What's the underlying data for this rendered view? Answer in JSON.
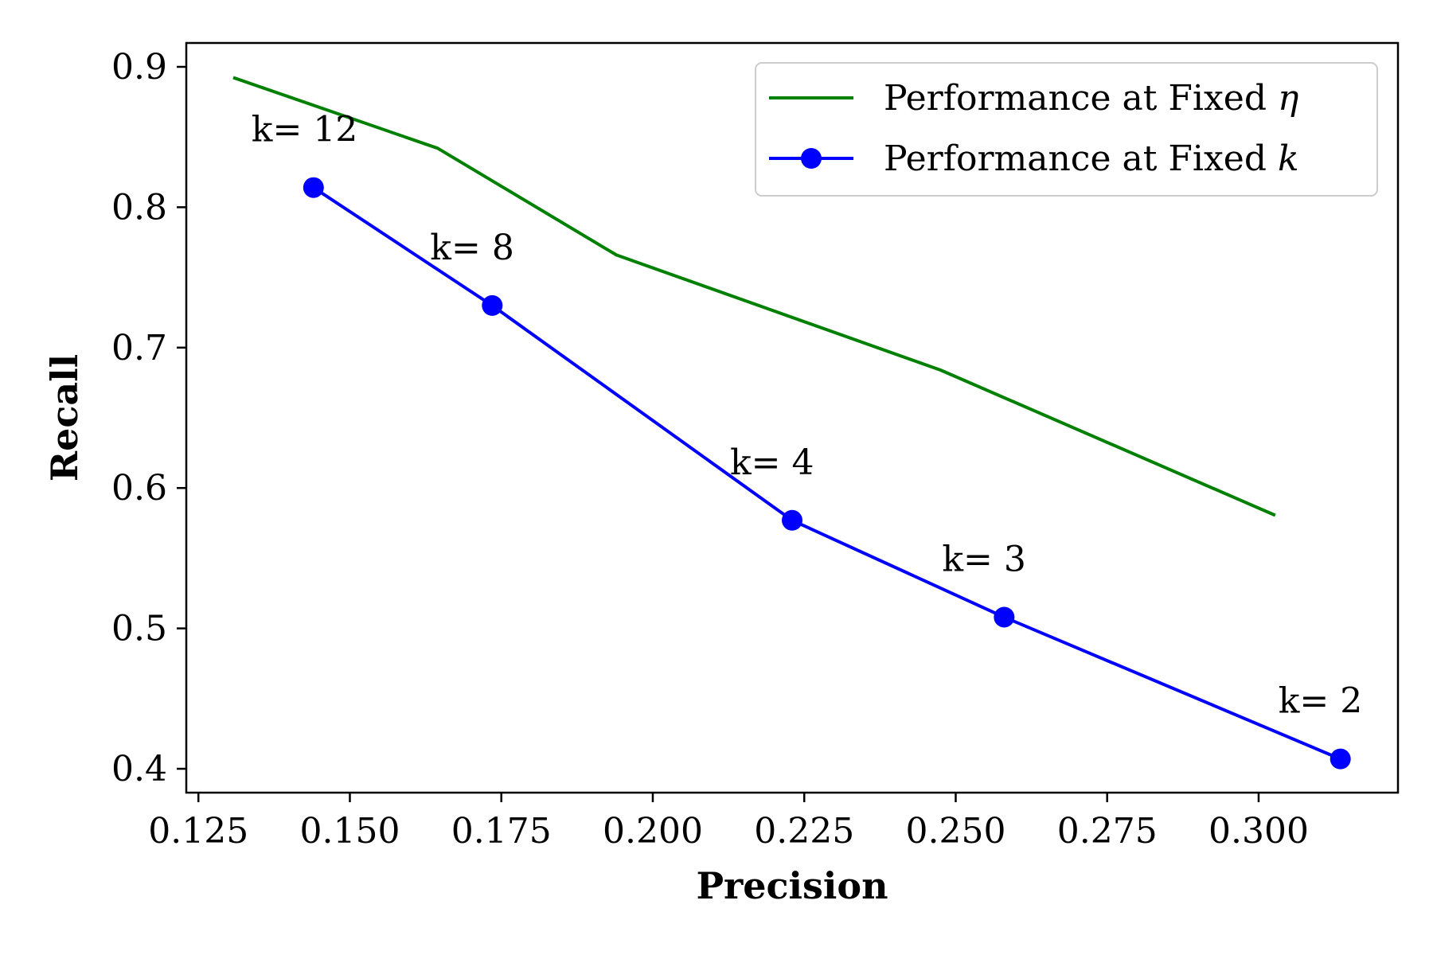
{
  "chart_data": {
    "type": "line",
    "xlabel": "Precision",
    "ylabel": "Recall",
    "xlim": [
      0.123,
      0.323
    ],
    "ylim": [
      0.383,
      0.917
    ],
    "xticks": [
      0.125,
      0.15,
      0.175,
      0.2,
      0.225,
      0.25,
      0.275,
      0.3
    ],
    "xtick_labels": [
      "0.125",
      "0.150",
      "0.175",
      "0.200",
      "0.225",
      "0.250",
      "0.275",
      "0.300"
    ],
    "yticks": [
      0.4,
      0.5,
      0.6,
      0.7,
      0.8,
      0.9
    ],
    "ytick_labels": [
      "0.4",
      "0.5",
      "0.6",
      "0.7",
      "0.8",
      "0.9"
    ],
    "grid": false,
    "legend_position": "top-right",
    "series": [
      {
        "name": "Performance at Fixed η",
        "legend_main": "Performance at Fixed ",
        "legend_symbol": "η",
        "color": "#008000",
        "markers": false,
        "x": [
          0.131,
          0.1645,
          0.194,
          0.2475,
          0.3025
        ],
        "y": [
          0.892,
          0.842,
          0.766,
          0.684,
          0.581
        ]
      },
      {
        "name": "Performance at Fixed k",
        "legend_main": "Performance at Fixed ",
        "legend_symbol": "k",
        "color": "#0000ff",
        "markers": true,
        "x": [
          0.144,
          0.1735,
          0.223,
          0.258,
          0.3135
        ],
        "y": [
          0.814,
          0.73,
          0.577,
          0.508,
          0.407
        ],
        "point_labels": [
          "k= 12",
          "k= 8",
          "k= 4",
          "k= 3",
          "k= 2"
        ]
      }
    ]
  }
}
